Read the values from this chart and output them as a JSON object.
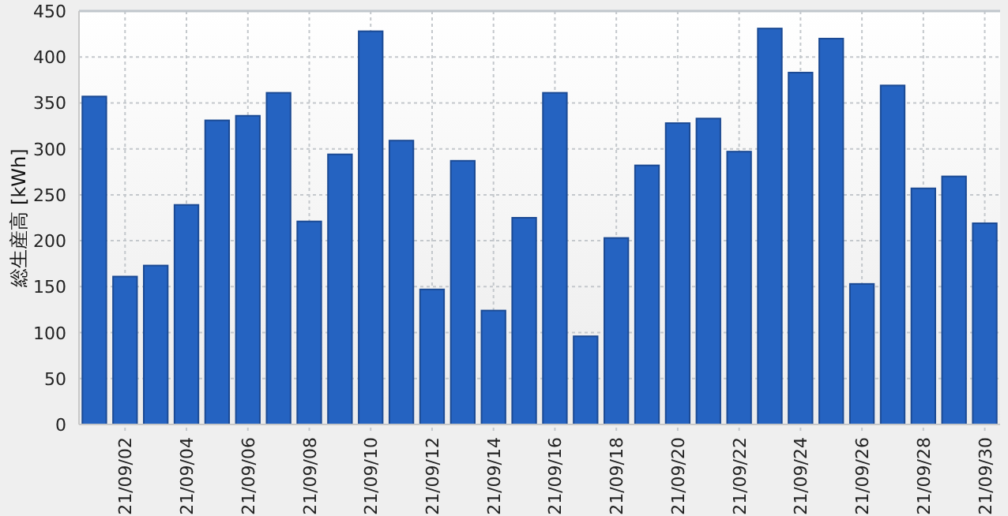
{
  "chart_data": {
    "type": "bar",
    "ylabel": "総生産高 [kWh]",
    "categories": [
      null,
      "21/09/02",
      null,
      "21/09/04",
      null,
      "21/09/06",
      null,
      "21/09/08",
      null,
      "21/09/10",
      null,
      "21/09/12",
      null,
      "21/09/14",
      null,
      "21/09/16",
      null,
      "21/09/18",
      null,
      "21/09/20",
      null,
      "21/09/22",
      null,
      "21/09/24",
      null,
      "21/09/26",
      null,
      "21/09/28",
      null,
      "21/09/30"
    ],
    "values": [
      357,
      161,
      173,
      239,
      331,
      336,
      361,
      221,
      294,
      428,
      309,
      147,
      287,
      124,
      225,
      361,
      96,
      203,
      282,
      328,
      333,
      297,
      431,
      383,
      420,
      153,
      369,
      257,
      270,
      219
    ],
    "color": "#2563c1",
    "ylim": [
      0,
      450
    ],
    "yticks": [
      0,
      50,
      100,
      150,
      200,
      250,
      300,
      350,
      400,
      450
    ],
    "grid": true
  }
}
